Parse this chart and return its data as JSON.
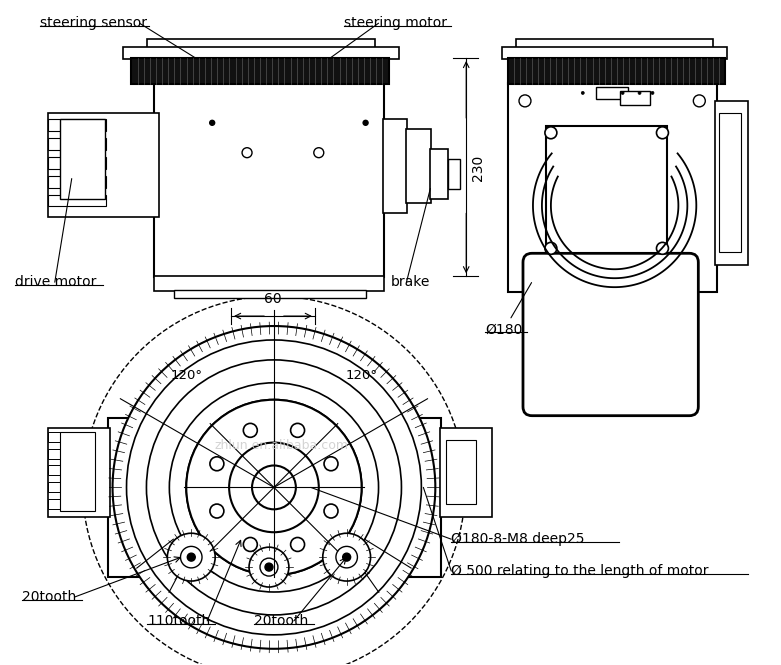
{
  "bg_color": "#ffffff",
  "line_color": "#000000",
  "watermark": "zhlun.en.alibaba.com",
  "watermark_color": "#bbbbbb",
  "labels": {
    "steering_sensor": "steering sensor",
    "steering_motor": "steering motor",
    "drive_motor": "drive motor",
    "brake": "brake",
    "dim_230": "230",
    "dim_60": "60",
    "dim_phi180": "Ø180",
    "annotation1": "Ø180-8-M8 deep25",
    "annotation2": "Ø 500 relating to the length of motor",
    "tooth1": "20tooth",
    "tooth2": "110tooth",
    "tooth3": "20tooth",
    "angle1": "120°",
    "angle2": "120°"
  },
  "figsize": [
    7.81,
    6.65
  ],
  "dpi": 100
}
